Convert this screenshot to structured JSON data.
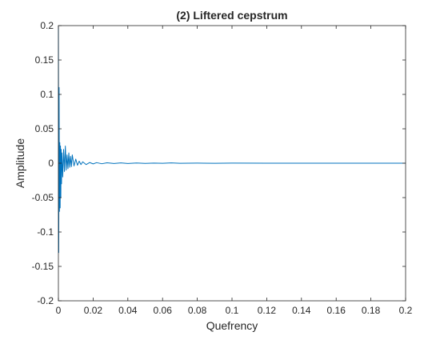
{
  "chart_data": {
    "type": "line",
    "title": "(2) Liftered cepstrum",
    "xlabel": "Quefrency",
    "ylabel": "Amplitude",
    "xlim": [
      0,
      0.2
    ],
    "ylim": [
      -0.2,
      0.2
    ],
    "xticks": [
      0,
      0.02,
      0.04,
      0.06,
      0.08,
      0.1,
      0.12,
      0.14,
      0.16,
      0.18,
      0.2
    ],
    "xtick_labels": [
      "0",
      "0.02",
      "0.04",
      "0.06",
      "0.08",
      "0.1",
      "0.12",
      "0.14",
      "0.16",
      "0.18",
      "0.2"
    ],
    "yticks": [
      -0.2,
      -0.15,
      -0.1,
      -0.05,
      0,
      0.05,
      0.1,
      0.15,
      0.2
    ],
    "ytick_labels": [
      "-0.2",
      "-0.15",
      "-0.1",
      "-0.05",
      "0",
      "0.05",
      "0.1",
      "0.15",
      "0.2"
    ],
    "grid": false,
    "box": true,
    "series": [
      {
        "color": "#0072BD",
        "x": [
          0,
          0.0002,
          0.0004,
          0.0006,
          0.0008,
          0.001,
          0.0012,
          0.0014,
          0.0016,
          0.0018,
          0.002,
          0.0025,
          0.003,
          0.0035,
          0.004,
          0.0045,
          0.005,
          0.0055,
          0.006,
          0.0065,
          0.007,
          0.0075,
          0.008,
          0.009,
          0.01,
          0.011,
          0.012,
          0.013,
          0.014,
          0.016,
          0.018,
          0.02,
          0.022,
          0.025,
          0.028,
          0.032,
          0.036,
          0.04,
          0.045,
          0.05,
          0.055,
          0.06,
          0.065,
          0.07,
          0.08,
          0.09,
          0.1,
          0.12,
          0.14,
          0.16,
          0.18,
          0.2
        ],
        "y": [
          0.2,
          -0.13,
          0.11,
          -0.07,
          0.03,
          -0.065,
          0.025,
          -0.05,
          0.02,
          -0.03,
          0.015,
          -0.02,
          0.02,
          -0.012,
          0.025,
          -0.01,
          0.012,
          -0.008,
          0.015,
          -0.006,
          0.01,
          -0.005,
          0.012,
          -0.004,
          0.006,
          -0.003,
          0.003,
          -0.002,
          0.002,
          -0.002,
          0.001,
          -0.001,
          0.0008,
          -0.0008,
          0.0006,
          -0.0005,
          0.0005,
          -0.0004,
          0.0003,
          -0.0003,
          0.0002,
          -0.0002,
          0.0004,
          -0.0001,
          0.0001,
          -0.0001,
          0.0001,
          0,
          0,
          0,
          0,
          0
        ]
      }
    ]
  }
}
